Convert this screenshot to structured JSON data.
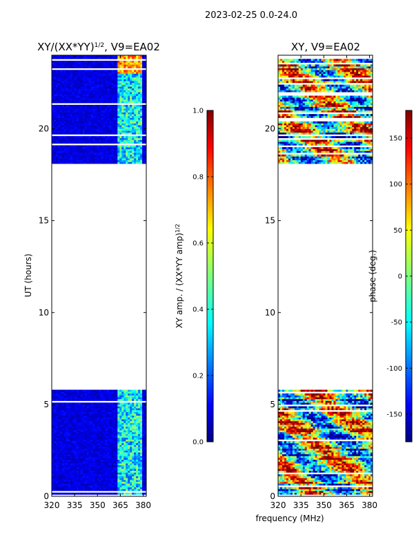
{
  "figure": {
    "suptitle": "2023-02-25 0.0-24.0",
    "xlabel": "frequency (MHz)"
  },
  "colors": {
    "jet": [
      "#00007f",
      "#0000ff",
      "#007fff",
      "#00ffff",
      "#7fff7f",
      "#ffff00",
      "#ff7f00",
      "#ff0000",
      "#7f0000"
    ],
    "gap": "#ffffff"
  },
  "chart_data": [
    {
      "type": "heatmap",
      "title_main": "XY/(XX*YY)",
      "title_exp": "1/2",
      "title_rest": ", V9=EA02",
      "ylabel": "UT (hours)",
      "xlim": [
        320,
        382
      ],
      "ylim": [
        0,
        24
      ],
      "x_ticks": [
        320,
        335,
        350,
        365,
        380
      ],
      "y_ticks": [
        0,
        5,
        10,
        15,
        20
      ],
      "data_coverage_hours": [
        [
          0,
          5.8
        ],
        [
          18.1,
          24
        ]
      ],
      "rfi_band_mhz": [
        363,
        379
      ],
      "colorbar": {
        "label_main": "XY amp. / (XX*YY amp)",
        "label_exp": "1/2",
        "vmin": 0.0,
        "vmax": 1.0,
        "ticks": [
          "0.0",
          "0.2",
          "0.4",
          "0.6",
          "0.8",
          "1.0"
        ],
        "tick_values": [
          0.0,
          0.2,
          0.4,
          0.6,
          0.8,
          1.0
        ]
      }
    },
    {
      "type": "heatmap",
      "title": "XY, V9=EA02",
      "ylabel": "",
      "xlim": [
        320,
        382
      ],
      "ylim": [
        0,
        24
      ],
      "x_ticks": [
        320,
        335,
        350,
        365,
        380
      ],
      "y_ticks": [
        0,
        5,
        10,
        15,
        20
      ],
      "data_coverage_hours": [
        [
          0,
          5.8
        ],
        [
          18.1,
          24
        ]
      ],
      "colorbar": {
        "label": "phase (deg.)",
        "vmin": -180,
        "vmax": 180,
        "ticks": [
          "-150",
          "-100",
          "-50",
          "0",
          "50",
          "100",
          "150"
        ],
        "tick_values": [
          -150,
          -100,
          -50,
          0,
          50,
          100,
          150
        ]
      }
    }
  ]
}
